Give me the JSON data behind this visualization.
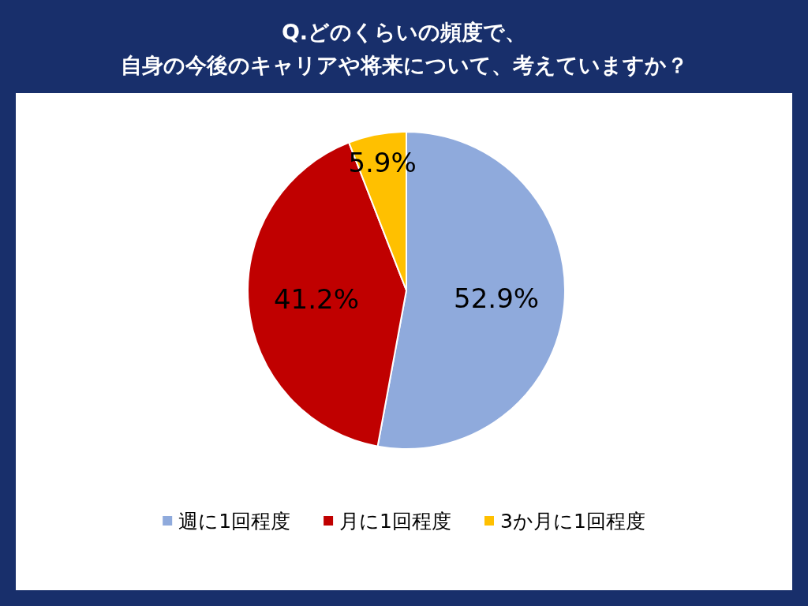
{
  "chart_data": {
    "type": "pie",
    "title": "Q.どのくらいの頻度で、自身の今後のキャリアや将来について、考えていますか？",
    "categories": [
      "週に1回程度",
      "月に1回程度",
      "3か月に1回程度"
    ],
    "values": [
      52.9,
      41.2,
      5.9
    ],
    "value_labels": [
      "52.9%",
      "41.2%",
      "5.9%"
    ],
    "colors": [
      "#8faadc",
      "#c00000",
      "#ffc000"
    ],
    "legend": "bottom"
  }
}
